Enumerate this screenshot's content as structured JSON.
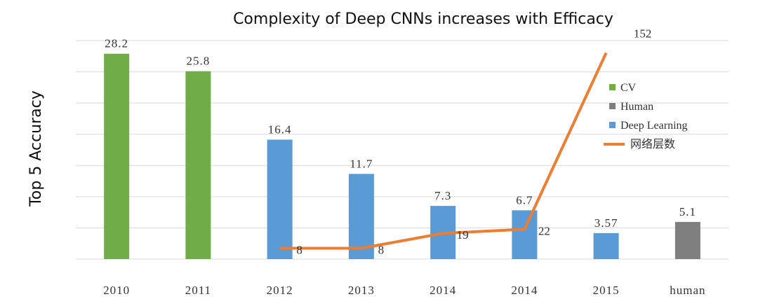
{
  "chart_data": {
    "type": "bar",
    "title": "Complexity of Deep CNNs increases with Efficacy",
    "xlabel": "",
    "ylabel": "Top 5 Accuracy",
    "ylim": [
      0,
      30
    ],
    "categories": [
      "2010",
      "2011",
      "2012",
      "2013",
      "2014",
      "2014",
      "2015",
      "human"
    ],
    "bars": [
      {
        "category": "2010",
        "value": 28.2,
        "label": "28.2",
        "series": "CV"
      },
      {
        "category": "2011",
        "value": 25.8,
        "label": "25.8",
        "series": "CV"
      },
      {
        "category": "2012",
        "value": 16.4,
        "label": "16.4",
        "series": "Deep Learning"
      },
      {
        "category": "2013",
        "value": 11.7,
        "label": "11.7",
        "series": "Deep Learning"
      },
      {
        "category": "2014",
        "value": 7.3,
        "label": "7.3",
        "series": "Deep Learning"
      },
      {
        "category": "2014",
        "value": 6.7,
        "label": "6.7",
        "series": "Deep Learning"
      },
      {
        "category": "2015",
        "value": 3.57,
        "label": "3.57",
        "series": "Deep Learning"
      },
      {
        "category": "human",
        "value": 5.1,
        "label": "5.1",
        "series": "Human"
      }
    ],
    "line_series": {
      "name": "网络层数",
      "points": [
        {
          "category_index": 2,
          "value": 8,
          "label": "8"
        },
        {
          "category_index": 3,
          "value": 8,
          "label": "8"
        },
        {
          "category_index": 4,
          "value": 19,
          "label": "19"
        },
        {
          "category_index": 5,
          "value": 22,
          "label": "22"
        },
        {
          "category_index": 6,
          "value": 152,
          "label": "152"
        }
      ],
      "secondary_ylim": [
        0,
        160
      ]
    },
    "legend": {
      "position": "right",
      "entries": [
        {
          "name": "CV",
          "color": "#70ad47",
          "kind": "bar"
        },
        {
          "name": "Human",
          "color": "#7f7f7f",
          "kind": "bar"
        },
        {
          "name": "Deep Learning",
          "color": "#5b9bd5",
          "kind": "bar"
        },
        {
          "name": "网络层数",
          "color": "#ed7d31",
          "kind": "line"
        }
      ]
    },
    "grid": true
  },
  "colors": {
    "CV": "#70ad47",
    "Human": "#7f7f7f",
    "Deep Learning": "#5b9bd5",
    "line": "#ed7d31"
  }
}
